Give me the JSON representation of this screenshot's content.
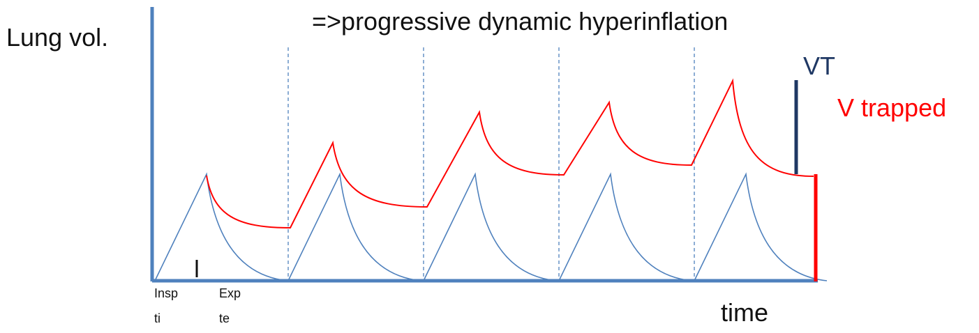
{
  "title": "=>progressive dynamic hyperinflation",
  "y_axis_label": "Lung vol.",
  "x_axis_label": "time",
  "legend": {
    "vt_label": "VT",
    "v_trapped_label": "V trapped"
  },
  "phase_labels": {
    "inspiration": [
      "Insp",
      "ti"
    ],
    "expiration": [
      "Exp",
      "te"
    ]
  },
  "colors": {
    "axis": "#4f81bd",
    "tidal_curve": "#4f81bd",
    "trapped_curve": "#ff0000",
    "vt_bar": "#1f3864",
    "v_trapped_bar": "#ff0000",
    "guide_lines": "#4f81bd",
    "text": "#111111"
  },
  "breath_cycles": 5
}
